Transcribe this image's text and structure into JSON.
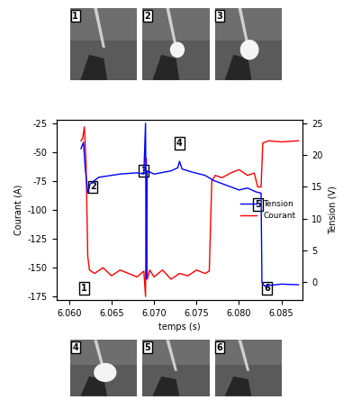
{
  "chart_data": {
    "type": "line",
    "x_label": "temps (s)",
    "y_label": "Courant (A)",
    "y2_label": "Tension (V)",
    "xlim": [
      6.0585,
      6.0875
    ],
    "xticks": [
      {
        "value": 6.06,
        "label": "6.060"
      },
      {
        "value": 6.065,
        "label": "6.065"
      },
      {
        "value": 6.07,
        "label": "6.070"
      },
      {
        "value": 6.075,
        "label": "6.075"
      },
      {
        "value": 6.08,
        "label": "6.080"
      },
      {
        "value": 6.085,
        "label": "6.085"
      }
    ],
    "ylim": [
      -178,
      -22
    ],
    "yticks": [
      -25,
      -50,
      -75,
      -100,
      -125,
      -150,
      -175
    ],
    "y2lim": [
      -2.8,
      25.5
    ],
    "y2ticks": [
      0,
      5,
      10,
      15,
      20,
      25
    ],
    "legend": "center right",
    "series": [
      {
        "name": "Tension",
        "color": "#0000ff",
        "axis": "y2",
        "x": [
          6.0614,
          6.0617,
          6.0619,
          6.0622,
          6.0625,
          6.0635,
          6.065,
          6.066,
          6.068,
          6.0688,
          6.069,
          6.0691,
          6.0692,
          6.07,
          6.072,
          6.0728,
          6.073,
          6.0733,
          6.0745,
          6.076,
          6.077,
          6.078,
          6.079,
          6.08,
          6.081,
          6.082,
          6.0826,
          6.0827,
          6.083,
          6.085,
          6.087
        ],
        "values": [
          21,
          22,
          18,
          14,
          15.5,
          16.5,
          16.8,
          17,
          17.2,
          17,
          25,
          0.5,
          17.5,
          17,
          17.5,
          18,
          19,
          17.8,
          17.3,
          16.8,
          16,
          15.5,
          15,
          14.5,
          14.8,
          14.2,
          14,
          0,
          -0.6,
          -0.3,
          -0.4
        ]
      },
      {
        "name": "Courant",
        "color": "#ff0000",
        "x": [
          6.0614,
          6.0616,
          6.0618,
          6.062,
          6.0622,
          6.0624,
          6.063,
          6.064,
          6.065,
          6.066,
          6.067,
          6.068,
          6.0688,
          6.069,
          6.0691,
          6.0692,
          6.0695,
          6.07,
          6.071,
          6.072,
          6.073,
          6.074,
          6.075,
          6.076,
          6.0765,
          6.0768,
          6.0772,
          6.078,
          6.079,
          6.08,
          6.081,
          6.0818,
          6.0822,
          6.0826,
          6.0828,
          6.0835,
          6.085,
          6.087
        ],
        "values": [
          -40,
          -38,
          -28,
          -60,
          -140,
          -152,
          -155,
          -150,
          -157,
          -152,
          -155,
          -158,
          -153,
          -175,
          -55,
          -160,
          -152,
          -158,
          -152,
          -160,
          -155,
          -157,
          -152,
          -155,
          -153,
          -75,
          -70,
          -72,
          -68,
          -65,
          -70,
          -68,
          -80,
          -80,
          -42,
          -40,
          -41,
          -40
        ]
      }
    ],
    "annotations": [
      {
        "text": "1",
        "x": 6.0618,
        "y": -168
      },
      {
        "text": "2",
        "x": 6.0628,
        "y": -80
      },
      {
        "text": "3",
        "x": 6.0688,
        "y": -66
      },
      {
        "text": "4",
        "x": 6.073,
        "y": -42
      },
      {
        "text": "5",
        "x": 6.0822,
        "y": -95
      },
      {
        "text": "6",
        "x": 6.0833,
        "y": -168
      }
    ]
  },
  "photos": {
    "top": [
      "1",
      "2",
      "3"
    ],
    "bottom": [
      "4",
      "5",
      "6"
    ]
  }
}
